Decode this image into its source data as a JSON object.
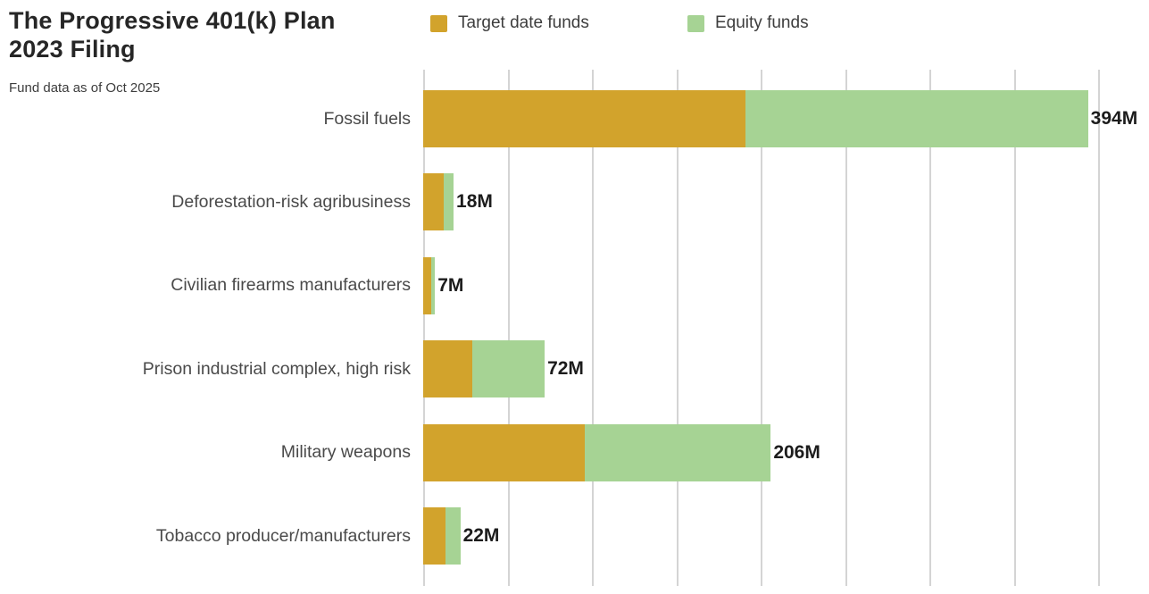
{
  "header": {
    "title_line1": "The Progressive 401(k) Plan",
    "title_line2": "2023 Filing",
    "subtitle": "Fund data as of Oct 2025"
  },
  "colors": {
    "target_date_funds": "#D2A32C",
    "equity_funds": "#A6D394",
    "gridline": "#D4D4D4",
    "title_text": "#262626",
    "category_text": "#4A4A4A",
    "value_text": "#1C1C1C"
  },
  "chart_data": {
    "type": "bar",
    "orientation": "horizontal",
    "stacked": true,
    "title": "The Progressive 401(k) Plan 2023 Filing",
    "subtitle": "Fund data as of Oct 2025",
    "categories": [
      "Fossil fuels",
      "Deforestation-risk agribusiness",
      "Civilian firearms manufacturers",
      "Prison industrial complex, high risk",
      "Military weapons",
      "Tobacco producer/manufacturers"
    ],
    "series": [
      {
        "name": "Target date funds",
        "color": "#D2A32C",
        "values": [
          191,
          12,
          5,
          29,
          96,
          13
        ]
      },
      {
        "name": "Equity funds",
        "color": "#A6D394",
        "values": [
          203,
          6,
          2,
          43,
          110,
          9
        ]
      }
    ],
    "totals": [
      394,
      18,
      7,
      72,
      206,
      22
    ],
    "total_labels": [
      "394M",
      "18M",
      "7M",
      "72M",
      "206M",
      "22M"
    ],
    "unit": "M",
    "xlim": [
      0,
      400
    ],
    "gridline_step": 50,
    "grid": true,
    "legend_position": "top"
  }
}
